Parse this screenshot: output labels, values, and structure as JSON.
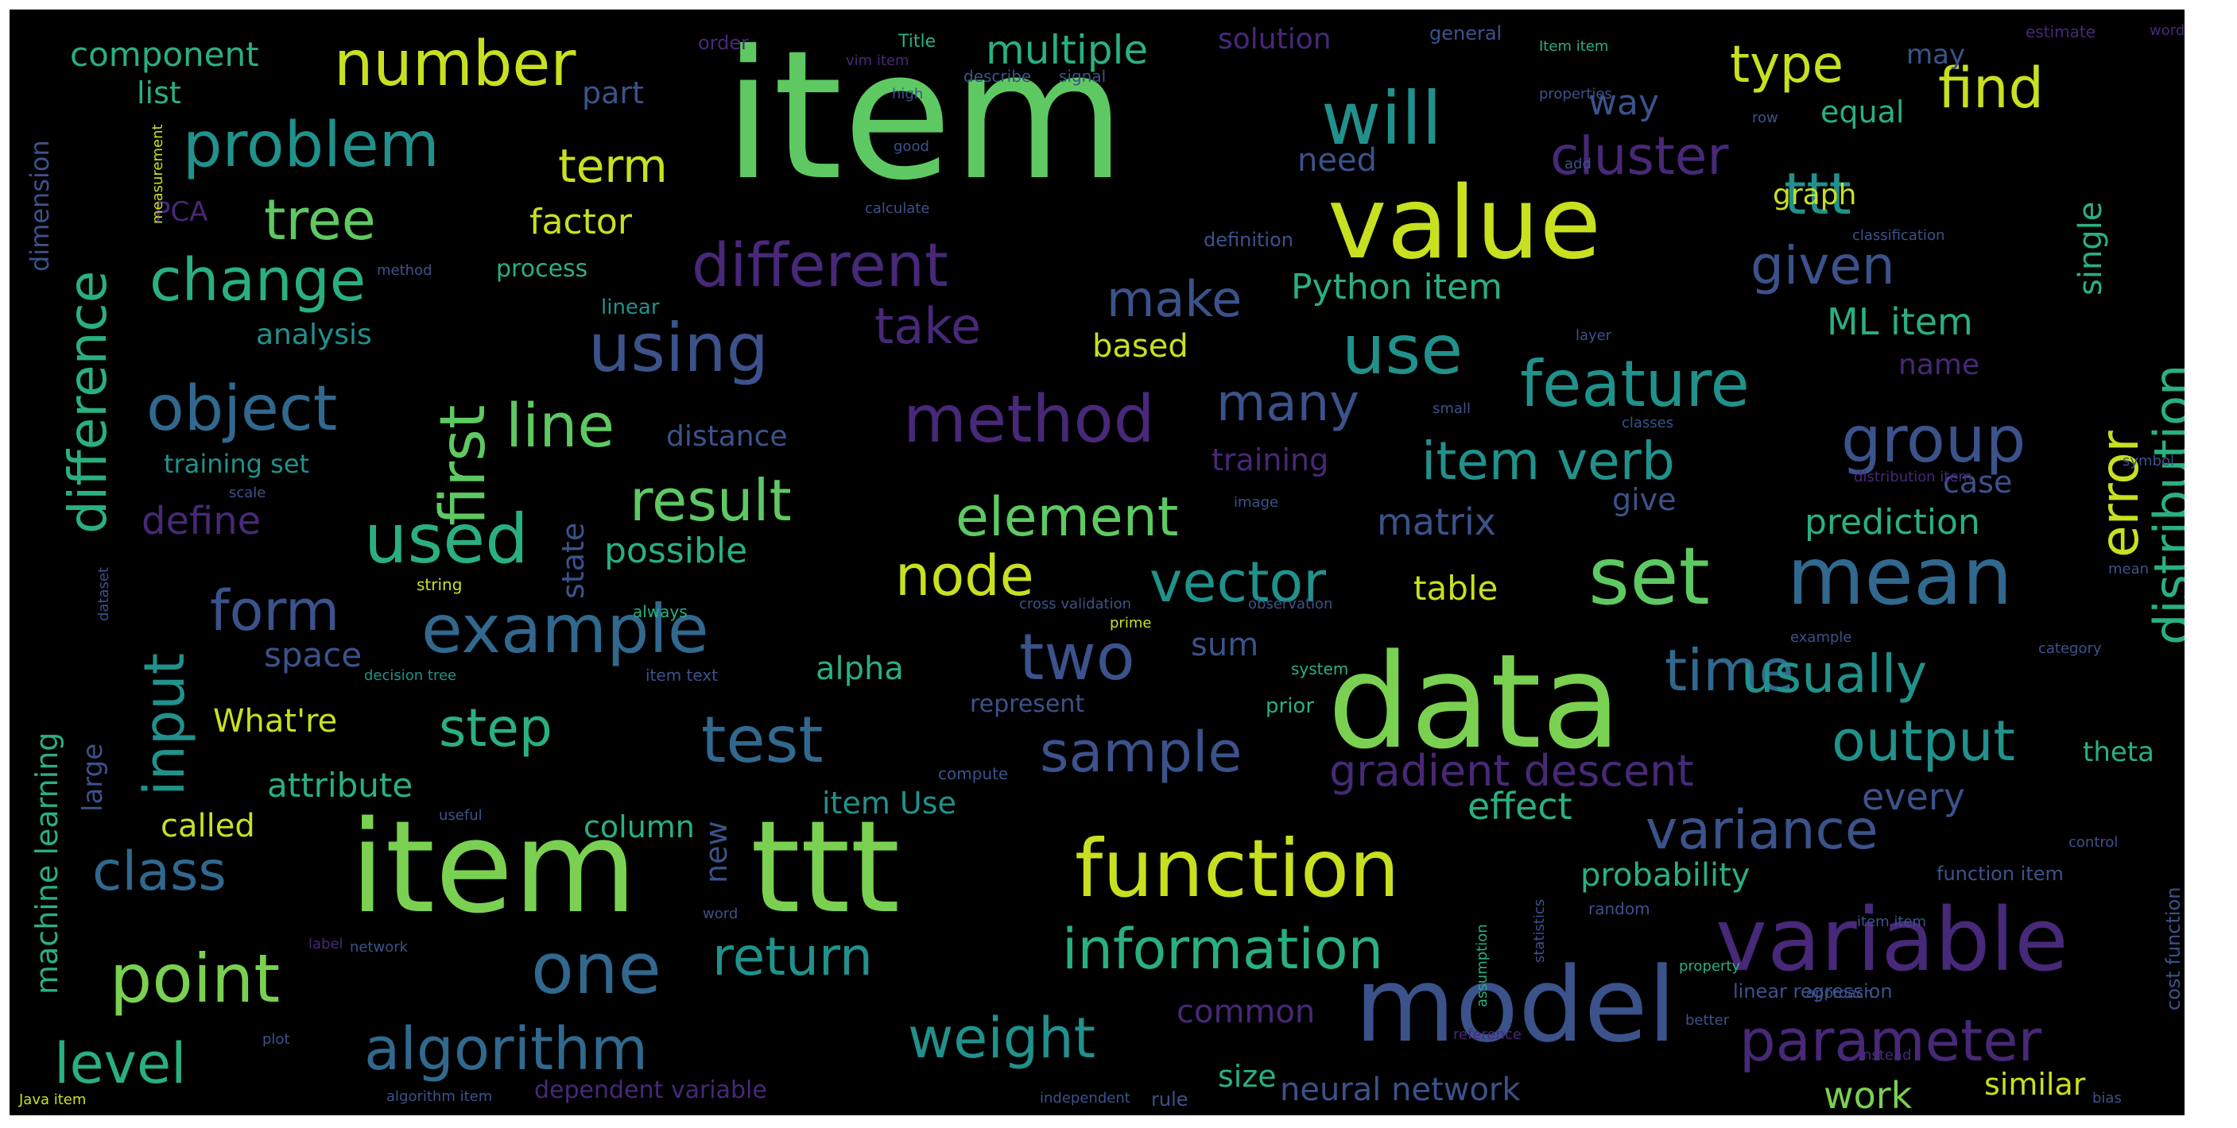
{
  "palette": {
    "background": "#000000",
    "green": "#5ec962",
    "lightgreen": "#7ad151",
    "yellow": "#c8e020",
    "teal": "#21918c",
    "tealgreen": "#2ab07f",
    "blue": "#3b528b",
    "slate": "#31688e",
    "purple": "#482878",
    "darkpurple": "#440154"
  },
  "words": [
    "item",
    "item",
    "data",
    "ttt",
    "value",
    "model",
    "variable",
    "function",
    "set",
    "mean",
    "one",
    "example",
    "using",
    "problem",
    "number",
    "will",
    "use",
    "method",
    "feature",
    "different",
    "object",
    "change",
    "tree",
    "first",
    "line",
    "point",
    "algorithm",
    "parameter",
    "information",
    "weight",
    "test",
    "return",
    "class",
    "level",
    "used",
    "input",
    "form",
    "two",
    "time",
    "usually",
    "output",
    "sample",
    "variance",
    "result",
    "element",
    "vector",
    "node",
    "step",
    "distribution",
    "error",
    "group",
    "item verb",
    "cluster",
    "ttt",
    "type",
    "find",
    "given",
    "many",
    "make",
    "take",
    "difference",
    "term",
    "factor",
    "multiple",
    "component",
    "list",
    "part",
    "order",
    "Title",
    "solution",
    "general",
    "estimate",
    "word",
    "way",
    "may",
    "equal",
    "single",
    "need",
    "graph",
    "PCA",
    "process",
    "analysis",
    "based",
    "Python item",
    "ML item",
    "name",
    "definition",
    "classification",
    "dimension",
    "measurement",
    "linear",
    "training set",
    "distance",
    "training",
    "case",
    "define",
    "matrix",
    "prediction",
    "possible",
    "give",
    "state",
    "table",
    "sum",
    "alpha",
    "space",
    "What're",
    "attribute",
    "called",
    "column",
    "item Use",
    "new",
    "gradient descent",
    "effect",
    "every",
    "theta",
    "probability",
    "common",
    "size",
    "neural network",
    "work",
    "similar",
    "dependent variable",
    "machine learning",
    "large",
    "linear regression",
    "represent",
    "prior",
    "rule",
    "function item",
    "cost function",
    "random",
    "distribution item",
    "cross validation",
    "observation",
    "string",
    "dataset",
    "prime",
    "label",
    "plot",
    "always",
    "system",
    "decision tree",
    "item text",
    "compute",
    "reference",
    "instead",
    "control",
    "useful",
    "word",
    "network",
    "approach",
    "better",
    "independent",
    "bias",
    "Java item",
    "algorithm item",
    "property",
    "assumption",
    "statistics",
    "item item",
    "image",
    "scale",
    "small",
    "layer",
    "classes",
    "method",
    "Item item",
    "vim item",
    "describe",
    "signal",
    "high",
    "properties",
    "row",
    "good",
    "add",
    "calculate",
    "example",
    "category",
    "symbol",
    "mean"
  ]
}
